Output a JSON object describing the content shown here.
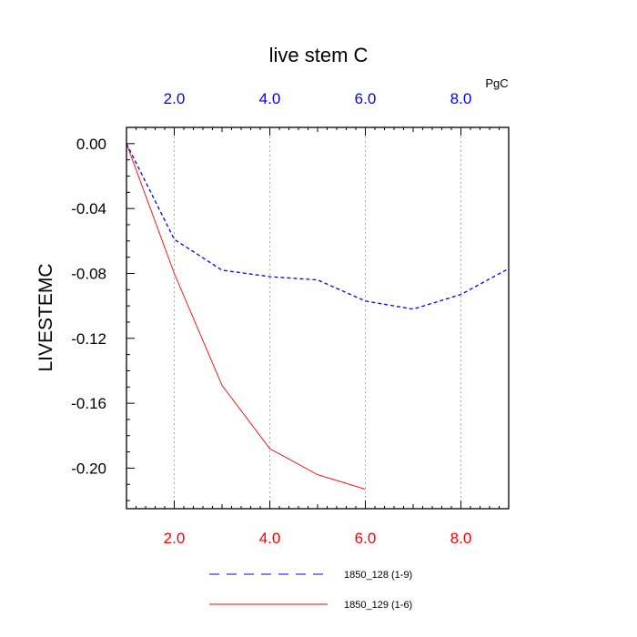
{
  "chart_data": {
    "type": "line",
    "title": "live stem C",
    "ylabel": "LIVESTEMC",
    "units": "PgC",
    "xlim": [
      1,
      9
    ],
    "ylim": [
      -0.225,
      0.01
    ],
    "x_ticks": [
      2,
      4,
      6,
      8
    ],
    "x_tick_labels_bottom": [
      "2.0",
      "4.0",
      "6.0",
      "8.0"
    ],
    "x_tick_labels_top": [
      "2.0",
      "4.0",
      "6.0",
      "8.0"
    ],
    "y_ticks": [
      0,
      -0.04,
      -0.08,
      -0.12,
      -0.16,
      -0.2
    ],
    "y_tick_labels": [
      "0.00",
      "-0.04",
      "-0.08",
      "-0.12",
      "-0.16",
      "-0.20"
    ],
    "grid": "vertical dotted at major x ticks",
    "series": [
      {
        "name": "1850_128 (1-9)",
        "color": "#0000ff",
        "dash": "dashed",
        "x": [
          1,
          2,
          3,
          4,
          5,
          6,
          7,
          8,
          9
        ],
        "values": [
          0.0,
          -0.059,
          -0.078,
          -0.082,
          -0.084,
          -0.097,
          -0.102,
          -0.093,
          -0.077
        ]
      },
      {
        "name": "1850_129 (1-6)",
        "color": "#ff0000",
        "dash": "solid",
        "x": [
          1,
          2,
          3,
          4,
          5,
          6
        ],
        "values": [
          0.0,
          -0.08,
          -0.149,
          -0.188,
          -0.204,
          -0.213
        ]
      }
    ],
    "colors": {
      "bottom_axis_labels": "#ff0000",
      "top_axis_labels": "#0000ff",
      "grid": "#999999",
      "frame": "#000000"
    }
  }
}
